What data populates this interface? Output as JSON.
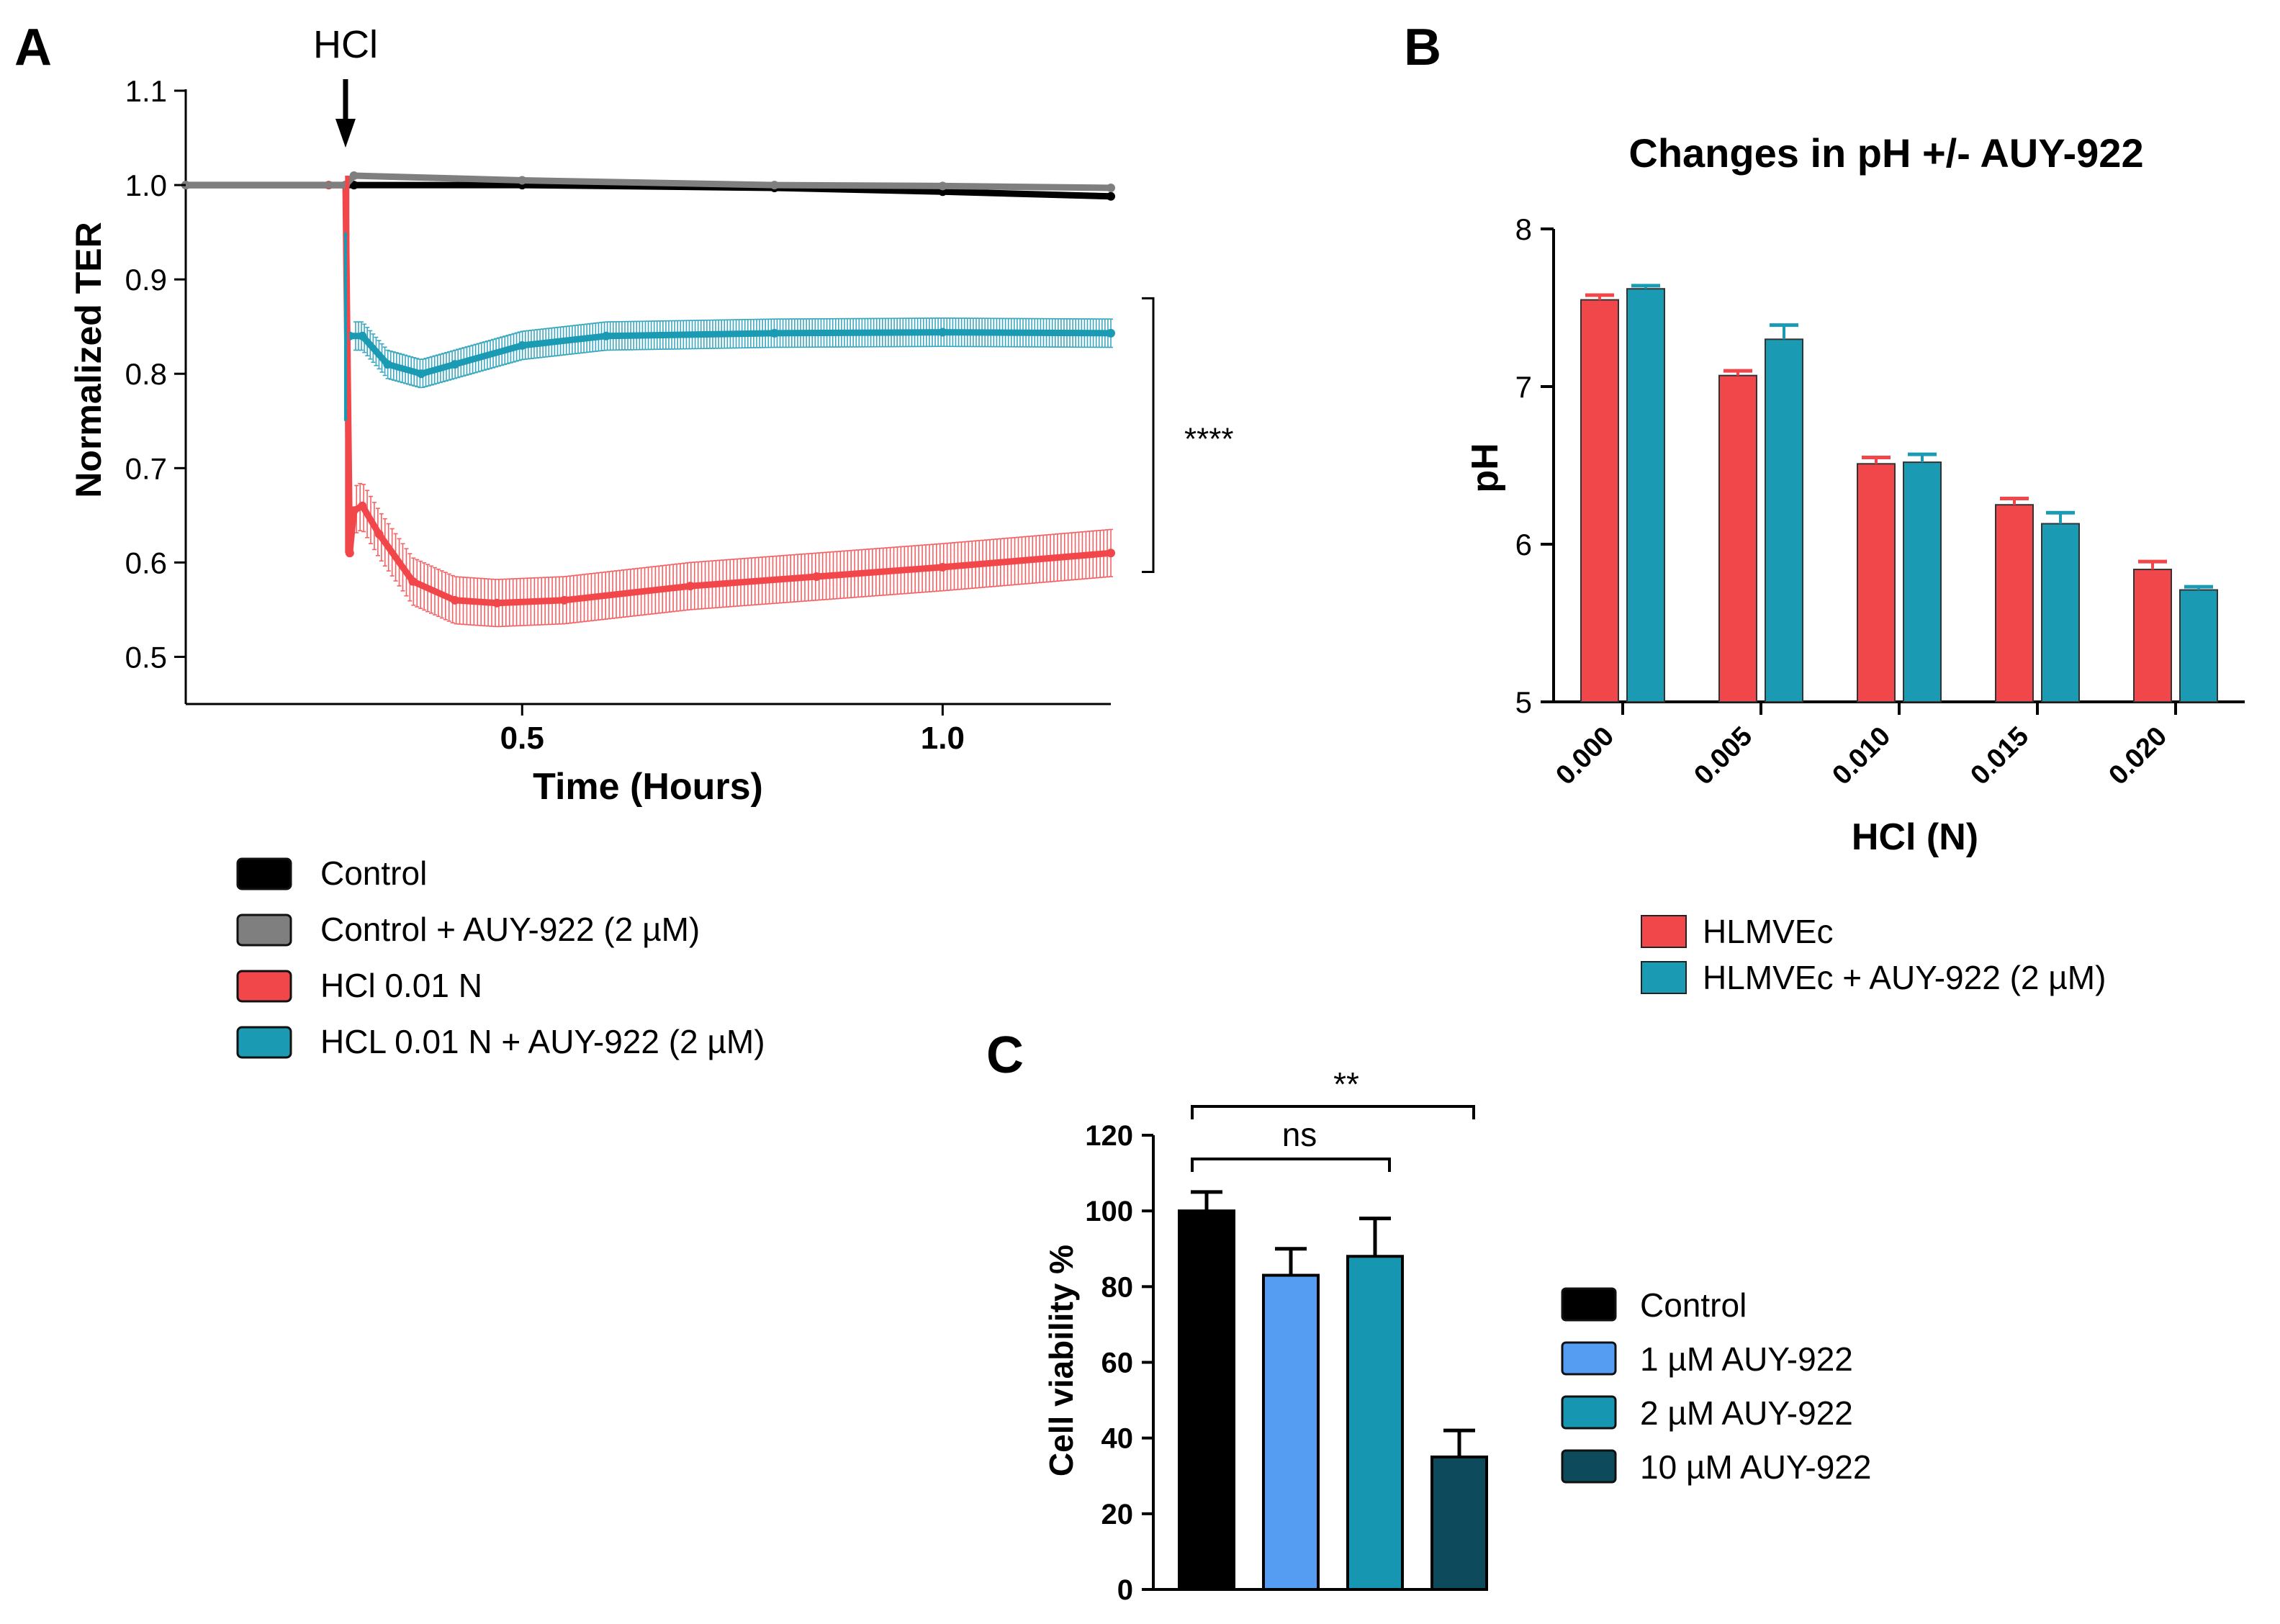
{
  "colors": {
    "black": "#000000",
    "gray": "#7f7f7f",
    "red": "#f2474a",
    "teal": "#1b9ab4",
    "blue": "#559cf3",
    "teal2": "#1796b2",
    "dark_teal": "#0c4a5c"
  },
  "panels": {
    "a_letter": "A",
    "b_letter": "B",
    "c_letter": "C"
  },
  "chart_data": [
    {
      "panel": "A",
      "type": "line",
      "title": "",
      "xlabel": "Time (Hours)",
      "ylabel": "Normalized TER",
      "xlim": [
        0.1,
        1.2
      ],
      "ylim": [
        0.45,
        1.1
      ],
      "xticks": [
        0.5,
        1.0
      ],
      "xtick_labels": [
        "0.5",
        "1.0"
      ],
      "yticks": [
        0.5,
        0.6,
        0.7,
        0.8,
        0.9,
        1.0,
        1.1
      ],
      "ytick_labels": [
        "0.5",
        "0.6",
        "0.7",
        "0.8",
        "0.9",
        "1.0",
        "1.1"
      ],
      "annotation_arrow": {
        "label": "HCl",
        "x": 0.29
      },
      "significance": {
        "label": "****",
        "y_from": 0.61,
        "y_to": 0.84
      },
      "legend_position": "bottom",
      "series": [
        {
          "name": "Control",
          "color_key": "black",
          "x": [
            0.1,
            0.29,
            0.3,
            0.5,
            0.8,
            1.0,
            1.2
          ],
          "y": [
            1.0,
            1.0,
            1.0,
            1.0,
            0.997,
            0.993,
            0.988
          ]
        },
        {
          "name": "Control +  AUY-922 (2 µM)",
          "color_key": "gray",
          "x": [
            0.1,
            0.29,
            0.3,
            0.5,
            0.8,
            1.0,
            1.2
          ],
          "y": [
            1.0,
            1.0,
            1.01,
            1.005,
            1.0,
            0.999,
            0.997
          ]
        },
        {
          "name": "HCl 0.01 N",
          "color_key": "red",
          "x": [
            0.1,
            0.27,
            0.29,
            0.295,
            0.3,
            0.31,
            0.33,
            0.37,
            0.42,
            0.47,
            0.55,
            0.7,
            0.85,
            1.0,
            1.2
          ],
          "y": [
            1.0,
            1.0,
            1.0,
            0.61,
            0.655,
            0.66,
            0.63,
            0.58,
            0.56,
            0.557,
            0.56,
            0.575,
            0.585,
            0.595,
            0.61
          ],
          "err": 0.025
        },
        {
          "name": "HCL 0.01 N + AUY-922 (2 µM)",
          "color_key": "teal",
          "x": [
            0.295,
            0.31,
            0.34,
            0.38,
            0.42,
            0.5,
            0.6,
            0.8,
            1.0,
            1.2
          ],
          "y": [
            0.84,
            0.84,
            0.81,
            0.8,
            0.81,
            0.83,
            0.84,
            0.843,
            0.844,
            0.843
          ],
          "err": 0.015
        }
      ]
    },
    {
      "panel": "B",
      "type": "bar",
      "title": "Changes in pH +/- AUY-922",
      "xlabel": "HCl (N)",
      "ylabel": "pH",
      "ylim": [
        5,
        8
      ],
      "yticks": [
        5,
        6,
        7,
        8
      ],
      "ytick_labels": [
        "5",
        "6",
        "7",
        "8"
      ],
      "categories": [
        "0.000",
        "0.005",
        "0.010",
        "0.015",
        "0.020"
      ],
      "legend_position": "bottom",
      "series": [
        {
          "name": "HLMVEc",
          "color_key": "red",
          "values": [
            7.55,
            7.07,
            6.51,
            6.25,
            5.84
          ],
          "errors": [
            0.03,
            0.03,
            0.04,
            0.04,
            0.05
          ]
        },
        {
          "name": "HLMVEc + AUY-922 (2 µM)",
          "color_key": "teal",
          "values": [
            7.62,
            7.3,
            6.52,
            6.13,
            5.71
          ],
          "errors": [
            0.02,
            0.09,
            0.05,
            0.07,
            0.02
          ]
        }
      ]
    },
    {
      "panel": "C",
      "type": "bar",
      "title": "",
      "xlabel": "",
      "ylabel": "Cell viability %",
      "ylim": [
        0,
        120
      ],
      "yticks": [
        0,
        20,
        40,
        60,
        80,
        100,
        120
      ],
      "ytick_labels": [
        "0",
        "20",
        "40",
        "60",
        "80",
        "100",
        "120"
      ],
      "categories": [
        "Control",
        "1 µM AUY-922",
        "2 µM AUY-922",
        "10 µM AUY-922"
      ],
      "values": [
        100,
        83,
        88,
        35
      ],
      "errors": [
        5,
        7,
        10,
        7
      ],
      "color_keys": [
        "black",
        "blue",
        "teal2",
        "dark_teal"
      ],
      "significance": [
        {
          "label": "ns",
          "from": 0,
          "to": 2
        },
        {
          "label": "**",
          "from": 0,
          "to": 3
        }
      ],
      "legend_position": "right"
    }
  ]
}
